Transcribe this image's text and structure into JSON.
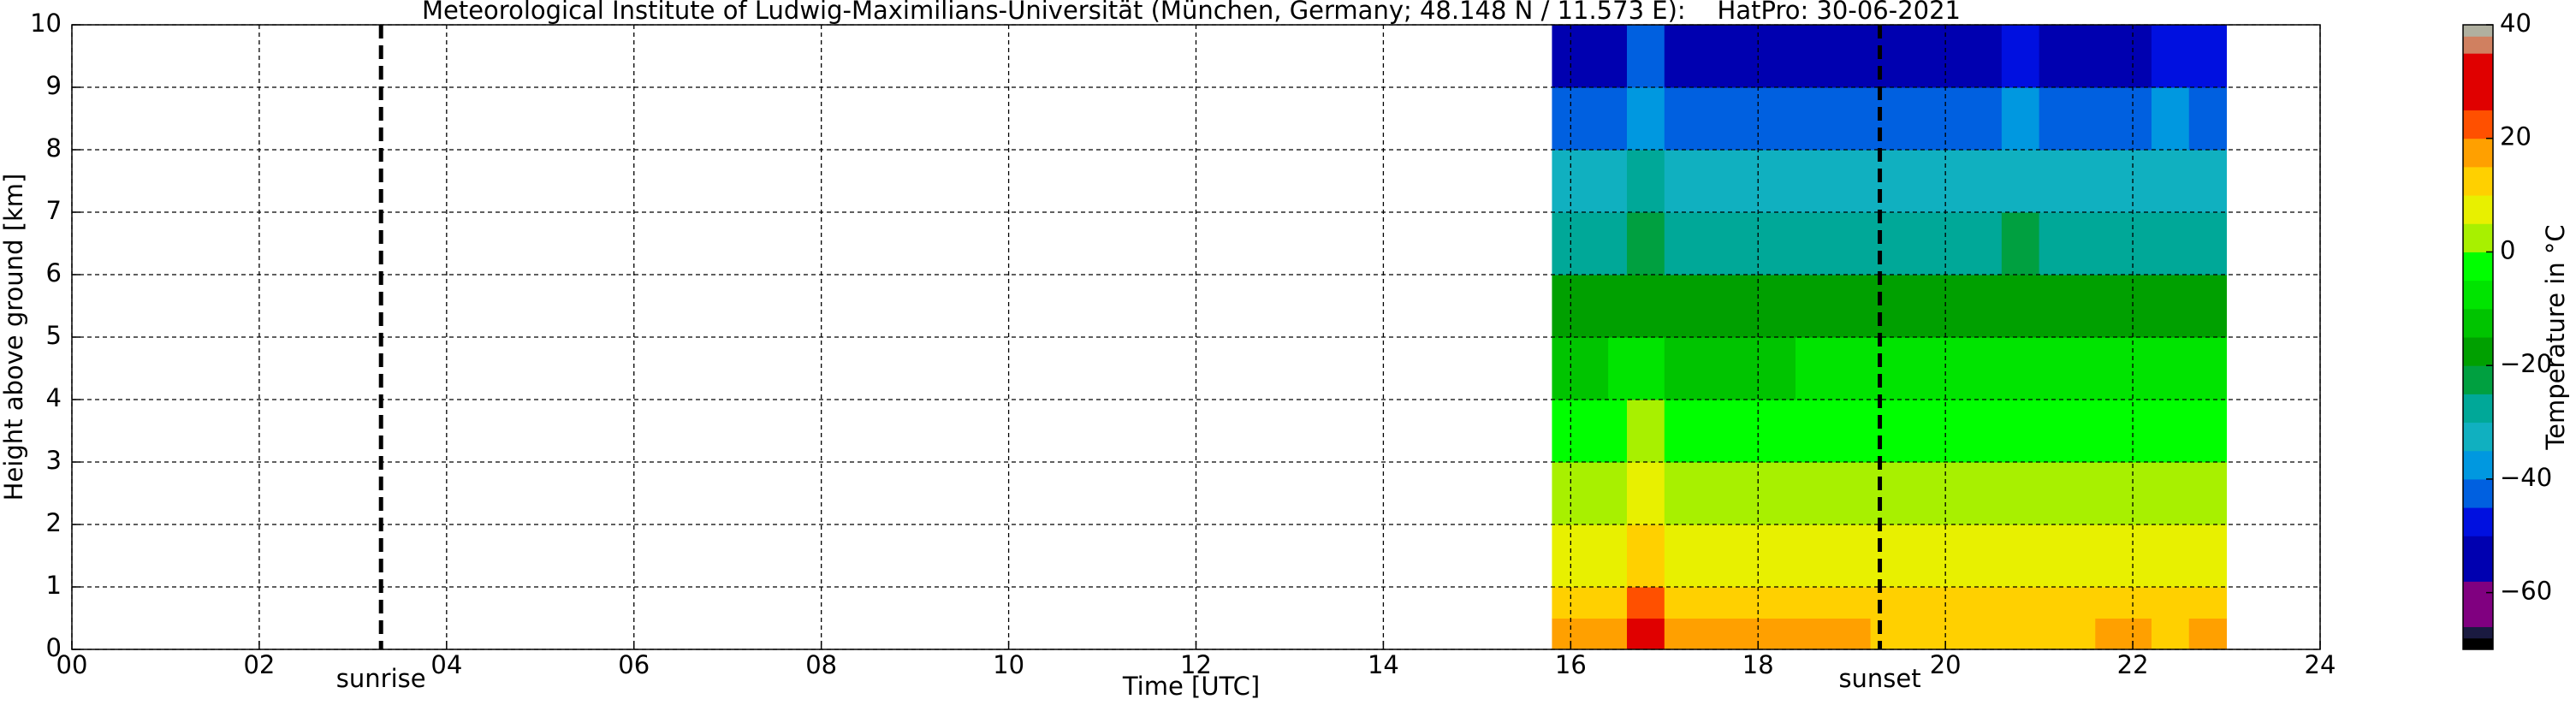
{
  "chart_data": {
    "type": "heatmap",
    "title": "Meteorological Institute of Ludwig-Maximilians-Universität (München, Germany; 48.148 N / 11.573 E):    HatPro: 30-06-2021",
    "x_label": "Time [UTC]",
    "y_label": "Height above ground [km]",
    "xlim": [
      0,
      24
    ],
    "ylim": [
      0,
      10
    ],
    "xticks": [
      {
        "value": 0,
        "label": "00"
      },
      {
        "value": 2,
        "label": "02"
      },
      {
        "value": 4,
        "label": "04"
      },
      {
        "value": 6,
        "label": "06"
      },
      {
        "value": 8,
        "label": "08"
      },
      {
        "value": 10,
        "label": "10"
      },
      {
        "value": 12,
        "label": "12"
      },
      14,
      16,
      18,
      20,
      22,
      24
    ],
    "yticks": [
      0,
      1,
      2,
      3,
      4,
      5,
      6,
      7,
      8,
      9,
      10
    ],
    "grid": true,
    "x_edges": [
      15.8,
      16.4,
      16.6,
      17.0,
      17.6,
      18.4,
      19.2,
      20.0,
      20.6,
      21.0,
      21.6,
      22.2,
      22.6,
      23.0
    ],
    "y_edges": [
      0,
      0.5,
      1,
      2,
      3,
      4,
      5,
      6,
      7,
      8,
      9,
      10
    ],
    "z": [
      [
        15,
        17,
        27,
        16,
        15,
        15,
        14,
        14,
        14,
        14,
        15,
        14,
        16
      ],
      [
        13,
        14,
        20,
        13,
        12,
        12,
        12,
        12,
        12,
        12,
        12,
        12,
        13
      ],
      [
        8,
        9,
        12,
        8,
        8,
        8,
        8,
        8,
        8,
        8,
        8,
        8,
        8
      ],
      [
        2,
        3,
        7,
        3,
        3,
        3,
        3,
        3,
        3,
        3,
        3,
        3,
        3
      ],
      [
        -4,
        -3,
        2,
        -3,
        -3,
        -3,
        -3,
        -3,
        -3,
        -3,
        -3,
        -3,
        -3
      ],
      [
        -11,
        -10,
        -8,
        -11,
        -11,
        -10,
        -10,
        -10,
        -9,
        -10,
        -10,
        -10,
        -10
      ],
      [
        -19,
        -18,
        -16,
        -18,
        -18,
        -18,
        -18,
        -17,
        -16,
        -17,
        -17,
        -16,
        -17
      ],
      [
        -28,
        -27,
        -22,
        -28,
        -28,
        -28,
        -28,
        -27,
        -25,
        -27,
        -27,
        -26,
        -27
      ],
      [
        -34,
        -33,
        -29,
        -34,
        -34,
        -34,
        -33,
        -33,
        -31,
        -33,
        -33,
        -32,
        -33
      ],
      [
        -44,
        -42,
        -37,
        -43,
        -43,
        -43,
        -43,
        -42,
        -39,
        -42,
        -42,
        -40,
        -42
      ],
      [
        -53,
        -52,
        -45,
        -53,
        -53,
        -53,
        -53,
        -52,
        -48,
        -52,
        -52,
        -48,
        -50
      ]
    ],
    "annotations": [
      {
        "text": "sunrise",
        "x": 3.3
      },
      {
        "text": "sunset",
        "x": 19.3
      }
    ],
    "colorbar": {
      "label": "Temperature in °C",
      "lim": [
        -70,
        40
      ],
      "ticks": [
        {
          "value": -60,
          "label": "−60"
        },
        {
          "value": -40,
          "label": "−40"
        },
        {
          "value": -20,
          "label": "−20"
        },
        0,
        20,
        40
      ],
      "levels": [
        -70,
        -68,
        -66,
        -58,
        -50,
        -45,
        -40,
        -35,
        -30,
        -25,
        -20,
        -15,
        -10,
        -5,
        0,
        5,
        10,
        15,
        20,
        25,
        35,
        38,
        40
      ],
      "colors": [
        "#000000",
        "#1a1a40",
        "#800080",
        "#0000b0",
        "#0010e0",
        "#0060e0",
        "#0098e0",
        "#10b0c0",
        "#00a898",
        "#00a040",
        "#00a000",
        "#00c400",
        "#00e400",
        "#00ff00",
        "#a8f000",
        "#e8f000",
        "#ffd000",
        "#ffa000",
        "#ff5000",
        "#e00000",
        "#d08060",
        "#b0b0a0"
      ]
    }
  }
}
